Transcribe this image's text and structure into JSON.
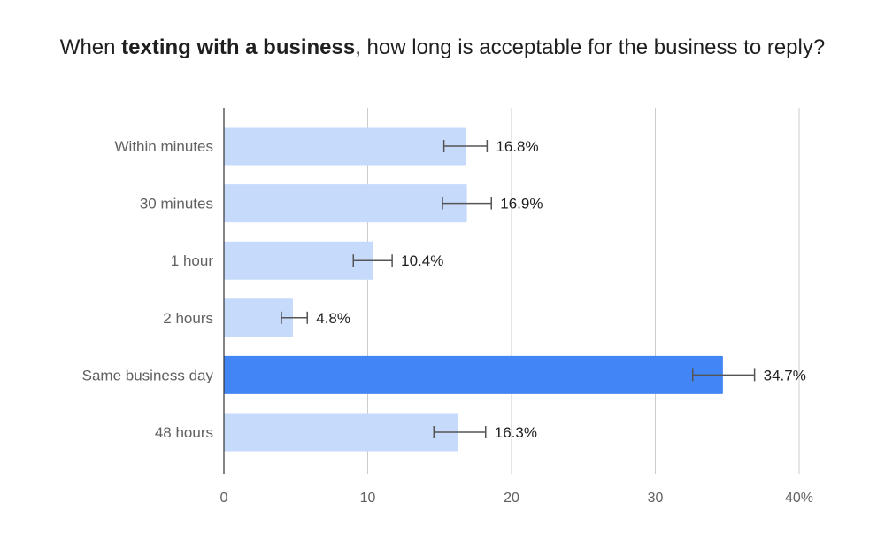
{
  "chart_data": {
    "type": "bar",
    "orientation": "horizontal",
    "title_parts": [
      {
        "text": "When ",
        "bold": false
      },
      {
        "text": "texting with a business",
        "bold": true
      },
      {
        "text": ", how long is acceptable for the business to reply?",
        "bold": false
      }
    ],
    "categories": [
      "Within minutes",
      "30 minutes",
      "1 hour",
      "2 hours",
      "Same business day",
      "48 hours"
    ],
    "values": [
      16.8,
      16.9,
      10.4,
      4.8,
      34.7,
      16.3
    ],
    "data_labels": [
      "16.8%",
      "16.9%",
      "10.4%",
      "4.8%",
      "34.7%",
      "16.3%"
    ],
    "error_bars": [
      [
        15.3,
        18.3
      ],
      [
        15.2,
        18.6
      ],
      [
        9.0,
        11.7
      ],
      [
        4.0,
        5.8
      ],
      [
        32.6,
        36.9
      ],
      [
        14.6,
        18.2
      ]
    ],
    "highlight_index": 4,
    "xlim": [
      0,
      40
    ],
    "x_ticks": [
      0,
      10,
      20,
      30,
      40
    ],
    "x_tick_labels": [
      "0",
      "10",
      "20",
      "30",
      "40%"
    ],
    "xlabel": "",
    "ylabel": "",
    "grid": "vertical",
    "colors": {
      "bar": "#c6dafc",
      "bar_highlight": "#4285f4",
      "grid": "#cccccc",
      "axis": "#333333",
      "error_bar": "#555555"
    }
  }
}
